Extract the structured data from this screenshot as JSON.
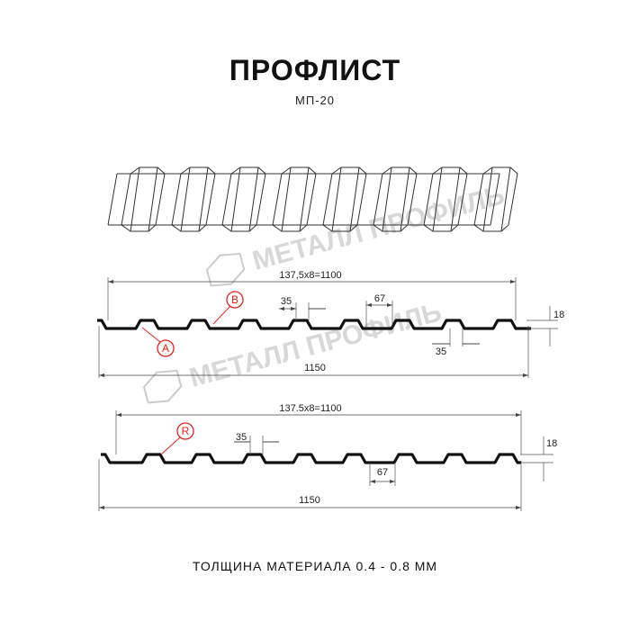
{
  "header": {
    "title": "ПРОФЛИСТ",
    "subtitle": "МП-20"
  },
  "watermark": {
    "text": "МЕТАЛЛ ПРОФИЛЬ"
  },
  "profile_top": {
    "pitch_label": "137,5х8=1100",
    "width_label": "1150",
    "crest_label": "35",
    "valley_label": "67",
    "bottom_crest_label": "35",
    "height_label": "18",
    "markers": [
      "B",
      "A"
    ]
  },
  "profile_bottom": {
    "pitch_label": "137.5x8=1100",
    "width_label": "1150",
    "crest_label": "35",
    "valley_label": "67",
    "height_label": "18",
    "markers": [
      "R"
    ]
  },
  "footer": {
    "thickness": "ТОЛЩИНА МАТЕРИАЛА 0.4 - 0.8 ММ"
  },
  "colors": {
    "profile": "#111111",
    "marker": "#e8231f",
    "watermark": "#cccccc"
  }
}
